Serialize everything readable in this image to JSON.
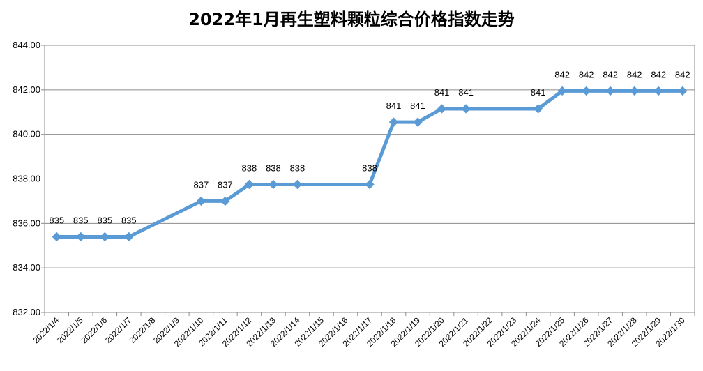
{
  "chart_data": {
    "type": "line",
    "title": "2022年1月再生塑料颗粒综合价格指数走势",
    "xlabel": "",
    "ylabel": "",
    "ylim": [
      832,
      844
    ],
    "yticks": [
      "832.00",
      "834.00",
      "836.00",
      "838.00",
      "840.00",
      "842.00",
      "844.00"
    ],
    "yticks_values": [
      832,
      834,
      836,
      838,
      840,
      842,
      844
    ],
    "grid": true,
    "legend": "none",
    "categories": [
      "2022/1/4",
      "2022/1/5",
      "2022/1/6",
      "2022/1/7",
      "2022/1/8",
      "2022/1/9",
      "2022/1/10",
      "2022/1/11",
      "2022/1/12",
      "2022/1/13",
      "2022/1/14",
      "2022/1/15",
      "2022/1/16",
      "2022/1/17",
      "2022/1/18",
      "2022/1/19",
      "2022/1/20",
      "2022/1/21",
      "2022/1/22",
      "2022/1/23",
      "2022/1/24",
      "2022/1/25",
      "2022/1/26",
      "2022/1/27",
      "2022/1/28",
      "2022/1/29",
      "2022/1/30"
    ],
    "points": [
      {
        "x": "2022/1/4",
        "y": 835.4,
        "label": "835"
      },
      {
        "x": "2022/1/5",
        "y": 835.4,
        "label": "835"
      },
      {
        "x": "2022/1/6",
        "y": 835.4,
        "label": "835"
      },
      {
        "x": "2022/1/7",
        "y": 835.4,
        "label": "835"
      },
      {
        "x": "2022/1/10",
        "y": 837.0,
        "label": "837"
      },
      {
        "x": "2022/1/11",
        "y": 837.0,
        "label": "837"
      },
      {
        "x": "2022/1/12",
        "y": 837.75,
        "label": "838"
      },
      {
        "x": "2022/1/13",
        "y": 837.75,
        "label": "838"
      },
      {
        "x": "2022/1/14",
        "y": 837.75,
        "label": "838"
      },
      {
        "x": "2022/1/17",
        "y": 837.75,
        "label": "838"
      },
      {
        "x": "2022/1/18",
        "y": 840.55,
        "label": "841"
      },
      {
        "x": "2022/1/19",
        "y": 840.55,
        "label": "841"
      },
      {
        "x": "2022/1/20",
        "y": 841.15,
        "label": "841"
      },
      {
        "x": "2022/1/21",
        "y": 841.15,
        "label": "841"
      },
      {
        "x": "2022/1/24",
        "y": 841.15,
        "label": "841"
      },
      {
        "x": "2022/1/25",
        "y": 841.95,
        "label": "842"
      },
      {
        "x": "2022/1/26",
        "y": 841.95,
        "label": "842"
      },
      {
        "x": "2022/1/27",
        "y": 841.95,
        "label": "842"
      },
      {
        "x": "2022/1/28",
        "y": 841.95,
        "label": "842"
      },
      {
        "x": "2022/1/29",
        "y": 841.95,
        "label": "842"
      },
      {
        "x": "2022/1/30",
        "y": 841.95,
        "label": "842"
      }
    ],
    "line_color": "#5b9bd5"
  }
}
